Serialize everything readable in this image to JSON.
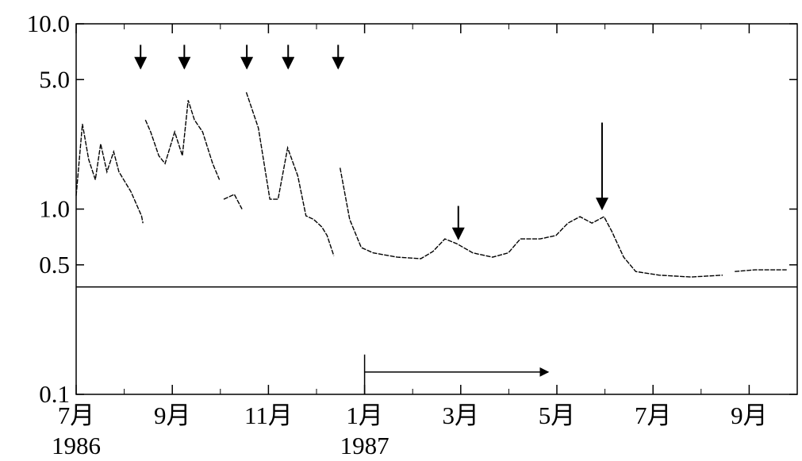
{
  "chart_data": {
    "type": "line",
    "log_y": true,
    "xlim": [
      0,
      15
    ],
    "ylim": [
      0.1,
      10
    ],
    "yticks": [
      0.1,
      0.5,
      {
        "value": 1,
        "label": "1.0"
      },
      {
        "value": 5,
        "label": "5.0"
      },
      {
        "value": 10,
        "label": "10.0"
      }
    ],
    "xticks": [
      {
        "value": 0,
        "label": "7月"
      },
      {
        "value": 2,
        "label": "9月"
      },
      {
        "value": 4,
        "label": "11月"
      },
      {
        "value": 6,
        "label": "1月"
      },
      {
        "value": 8,
        "label": "3月"
      },
      {
        "value": 10,
        "label": "5月"
      },
      {
        "value": 12,
        "label": "7月"
      },
      {
        "value": 14,
        "label": "9月"
      }
    ],
    "xminor": [
      1,
      3,
      5,
      7,
      9,
      11,
      13,
      15
    ],
    "year_labels": [
      {
        "value": 0,
        "label": "1986"
      },
      {
        "value": 6,
        "label": "1987"
      }
    ],
    "reference_line": 0.38,
    "series": [
      {
        "color": "#000000",
        "x": [
          0,
          0.13,
          0.26,
          0.4,
          0.51,
          0.64,
          0.78,
          0.89,
          1.14,
          1.36,
          1.39,
          null,
          1.44,
          1.55,
          1.72,
          1.85,
          2.05,
          2.21,
          2.33,
          2.46,
          2.63,
          2.84,
          2.98,
          null,
          3.07,
          3.29,
          3.45,
          null,
          3.54,
          3.79,
          4.03,
          4.2,
          4.4,
          4.61,
          4.78,
          4.94,
          5.11,
          5.22,
          5.36,
          null,
          5.49,
          5.69,
          5.93,
          6.18,
          6.68,
          7.17,
          7.42,
          7.67,
          7.92,
          8.25,
          8.66,
          8.99,
          9.24,
          9.65,
          9.98,
          10.23,
          10.48,
          10.73,
          10.98,
          11.14,
          11.39,
          11.64,
          12.13,
          12.79,
          13.45,
          null,
          13.7,
          14.12,
          14.78
        ],
        "values": [
          1.18,
          2.88,
          1.85,
          1.44,
          2.25,
          1.59,
          2.04,
          1.59,
          1.24,
          0.92,
          0.84,
          null,
          3.03,
          2.61,
          1.94,
          1.76,
          2.61,
          1.94,
          3.87,
          3.03,
          2.61,
          1.76,
          1.44,
          null,
          1.13,
          1.2,
          1.0,
          null,
          4.27,
          2.74,
          1.13,
          1.13,
          2.14,
          1.51,
          0.92,
          0.88,
          0.8,
          0.72,
          0.56,
          null,
          1.67,
          0.88,
          0.62,
          0.58,
          0.55,
          0.54,
          0.59,
          0.69,
          0.65,
          0.58,
          0.55,
          0.58,
          0.69,
          0.69,
          0.72,
          0.84,
          0.91,
          0.84,
          0.91,
          0.76,
          0.55,
          0.46,
          0.44,
          0.43,
          0.44,
          null,
          0.46,
          0.47,
          0.47
        ]
      }
    ],
    "arrows": [
      {
        "x": 1.34,
        "y_from": 7.7,
        "y_to": 5.75
      },
      {
        "x": 2.25,
        "y_from": 7.7,
        "y_to": 5.75
      },
      {
        "x": 3.55,
        "y_from": 7.7,
        "y_to": 5.75
      },
      {
        "x": 4.41,
        "y_from": 7.7,
        "y_to": 5.75
      },
      {
        "x": 5.45,
        "y_from": 7.7,
        "y_to": 5.75
      },
      {
        "x": 7.95,
        "y_from": 1.04,
        "y_to": 0.69
      },
      {
        "x": 10.94,
        "y_from": 2.93,
        "y_to": 1.0
      }
    ],
    "period": {
      "x_from": 6,
      "x_to": 9.82,
      "y": 0.132,
      "y_top": 0.164
    }
  }
}
